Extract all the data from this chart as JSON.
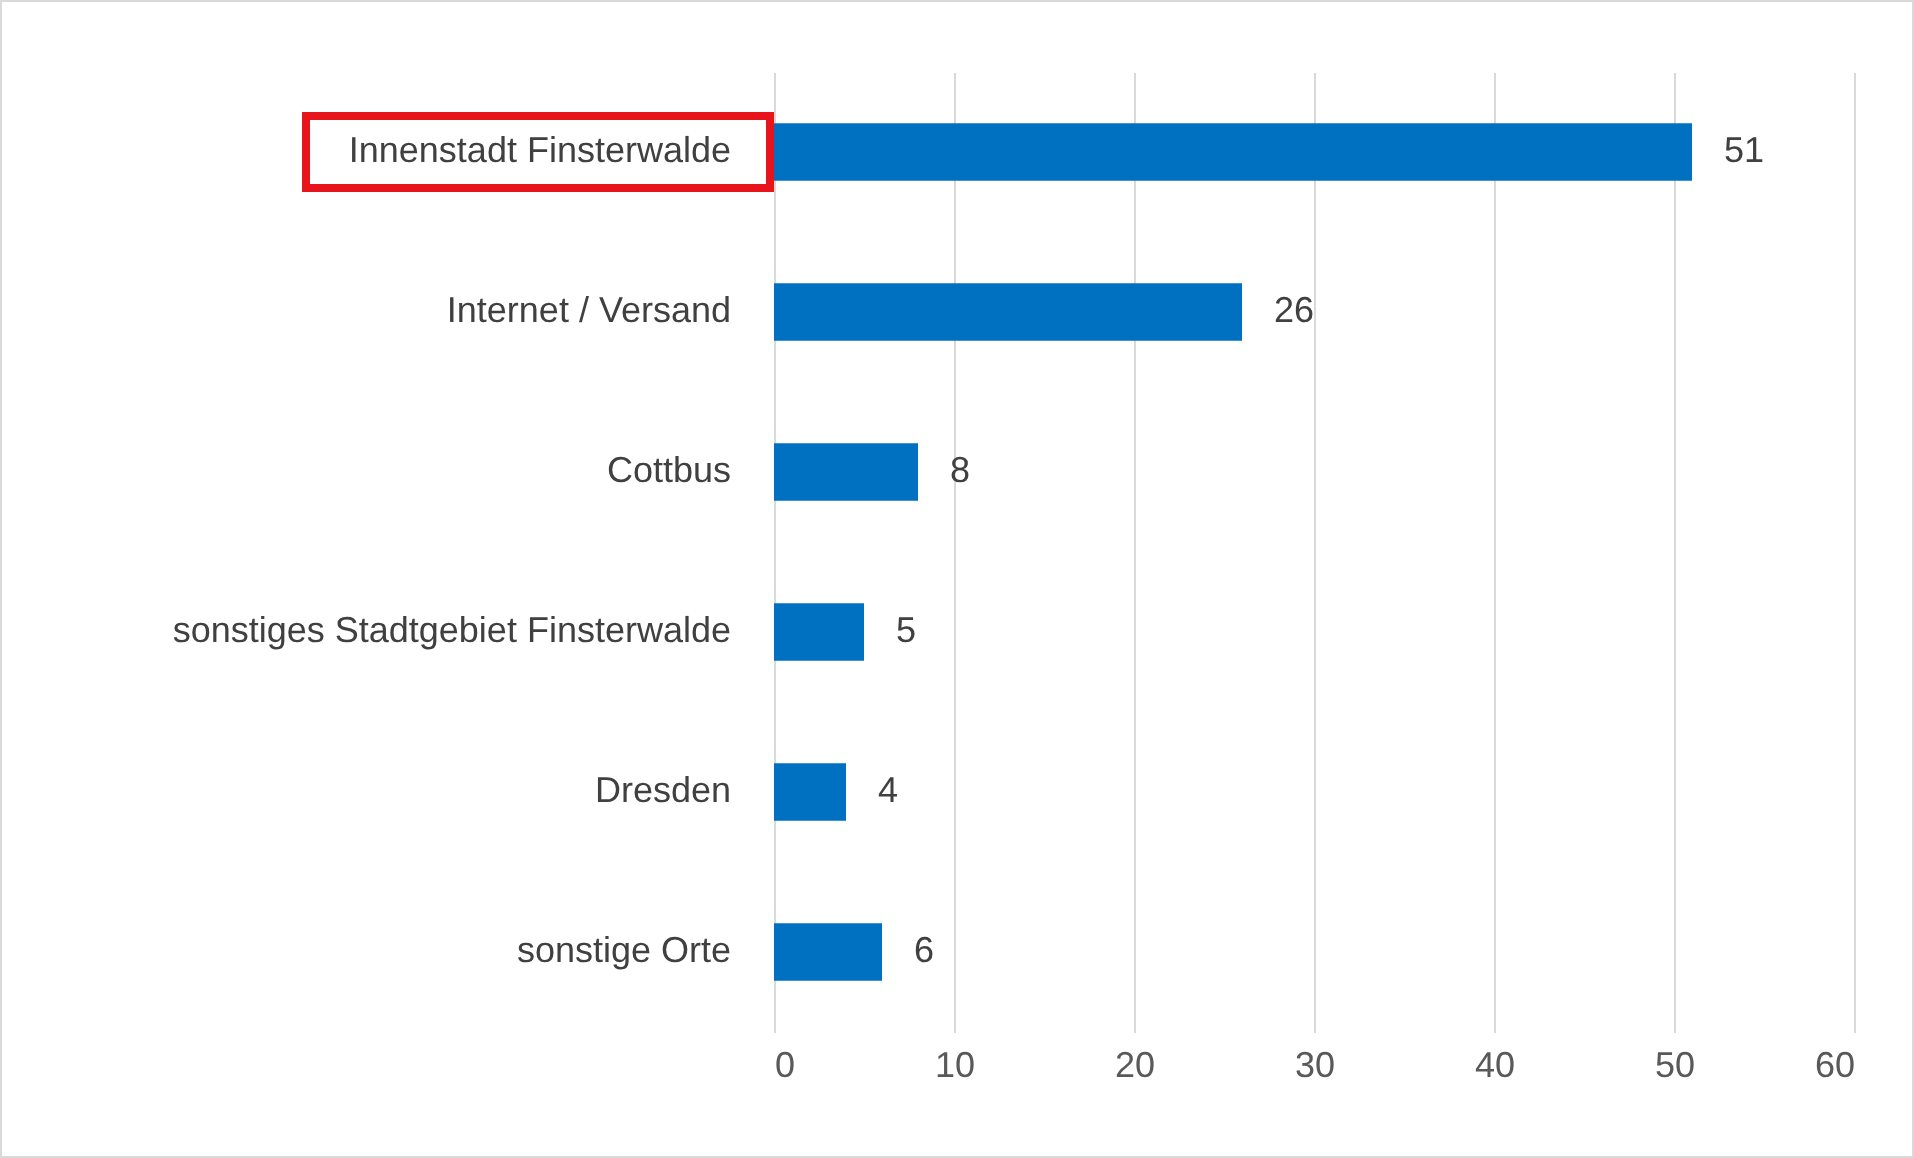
{
  "chart_data": {
    "type": "bar",
    "orientation": "horizontal",
    "categories": [
      "Innenstadt Finsterwalde",
      "Internet / Versand",
      "Cottbus",
      "sonstiges Stadtgebiet Finsterwalde",
      "Dresden",
      "sonstige Orte"
    ],
    "values": [
      51,
      26,
      8,
      5,
      4,
      6
    ],
    "color": "#0070c0",
    "xlim": [
      0,
      60
    ],
    "xticks": [
      0,
      10,
      20,
      30,
      40,
      50,
      60
    ],
    "grid": "x",
    "data_labels": true
  }
}
